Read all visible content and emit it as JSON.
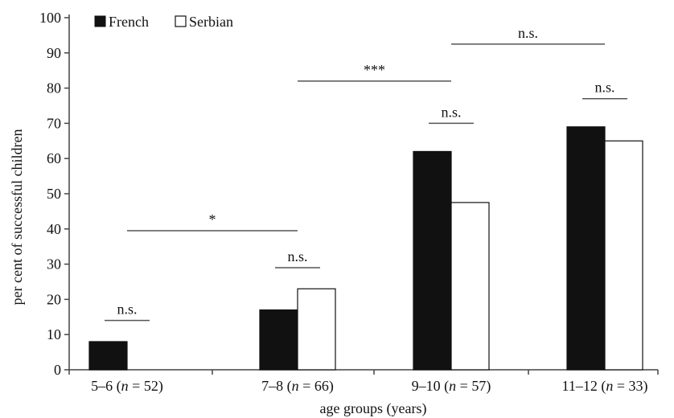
{
  "chart_data": {
    "type": "bar",
    "categories": [
      "5–6",
      "7–8",
      "9–10",
      "11–12"
    ],
    "category_n": [
      "52",
      "66",
      "57",
      "33"
    ],
    "series": [
      {
        "name": "French",
        "values": [
          8,
          17,
          62,
          69
        ],
        "color": "#111111"
      },
      {
        "name": "Serbian",
        "values": [
          0,
          23,
          47.5,
          65
        ],
        "color": "#ffffff"
      }
    ],
    "xlabel": "age groups (years)",
    "ylabel": "per cent of successful children",
    "ylim": [
      0,
      100
    ],
    "yticks": [
      0,
      10,
      20,
      30,
      40,
      50,
      60,
      70,
      80,
      90,
      100
    ],
    "legend": {
      "position": "top-left",
      "entries": [
        "French",
        "Serbian"
      ]
    },
    "grid": false,
    "significance": [
      {
        "label": "n.s.",
        "level": 14,
        "within_category": 0
      },
      {
        "label": "n.s.",
        "level": 29,
        "within_category": 1
      },
      {
        "label": "n.s.",
        "level": 70,
        "within_category": 2
      },
      {
        "label": "n.s.",
        "level": 77,
        "within_category": 3
      },
      {
        "label": "*",
        "level": 39.5,
        "from_category": 0,
        "to_category": 1
      },
      {
        "label": "***",
        "level": 82,
        "from_category": 1,
        "to_category": 2
      },
      {
        "label": "n.s.",
        "level": 92.5,
        "from_category": 2,
        "to_category": 3
      }
    ]
  },
  "labels": {
    "n_prefix": "n",
    "equals": " = ",
    "legend_french_marker": "■",
    "legend_serbian_marker": "□"
  }
}
